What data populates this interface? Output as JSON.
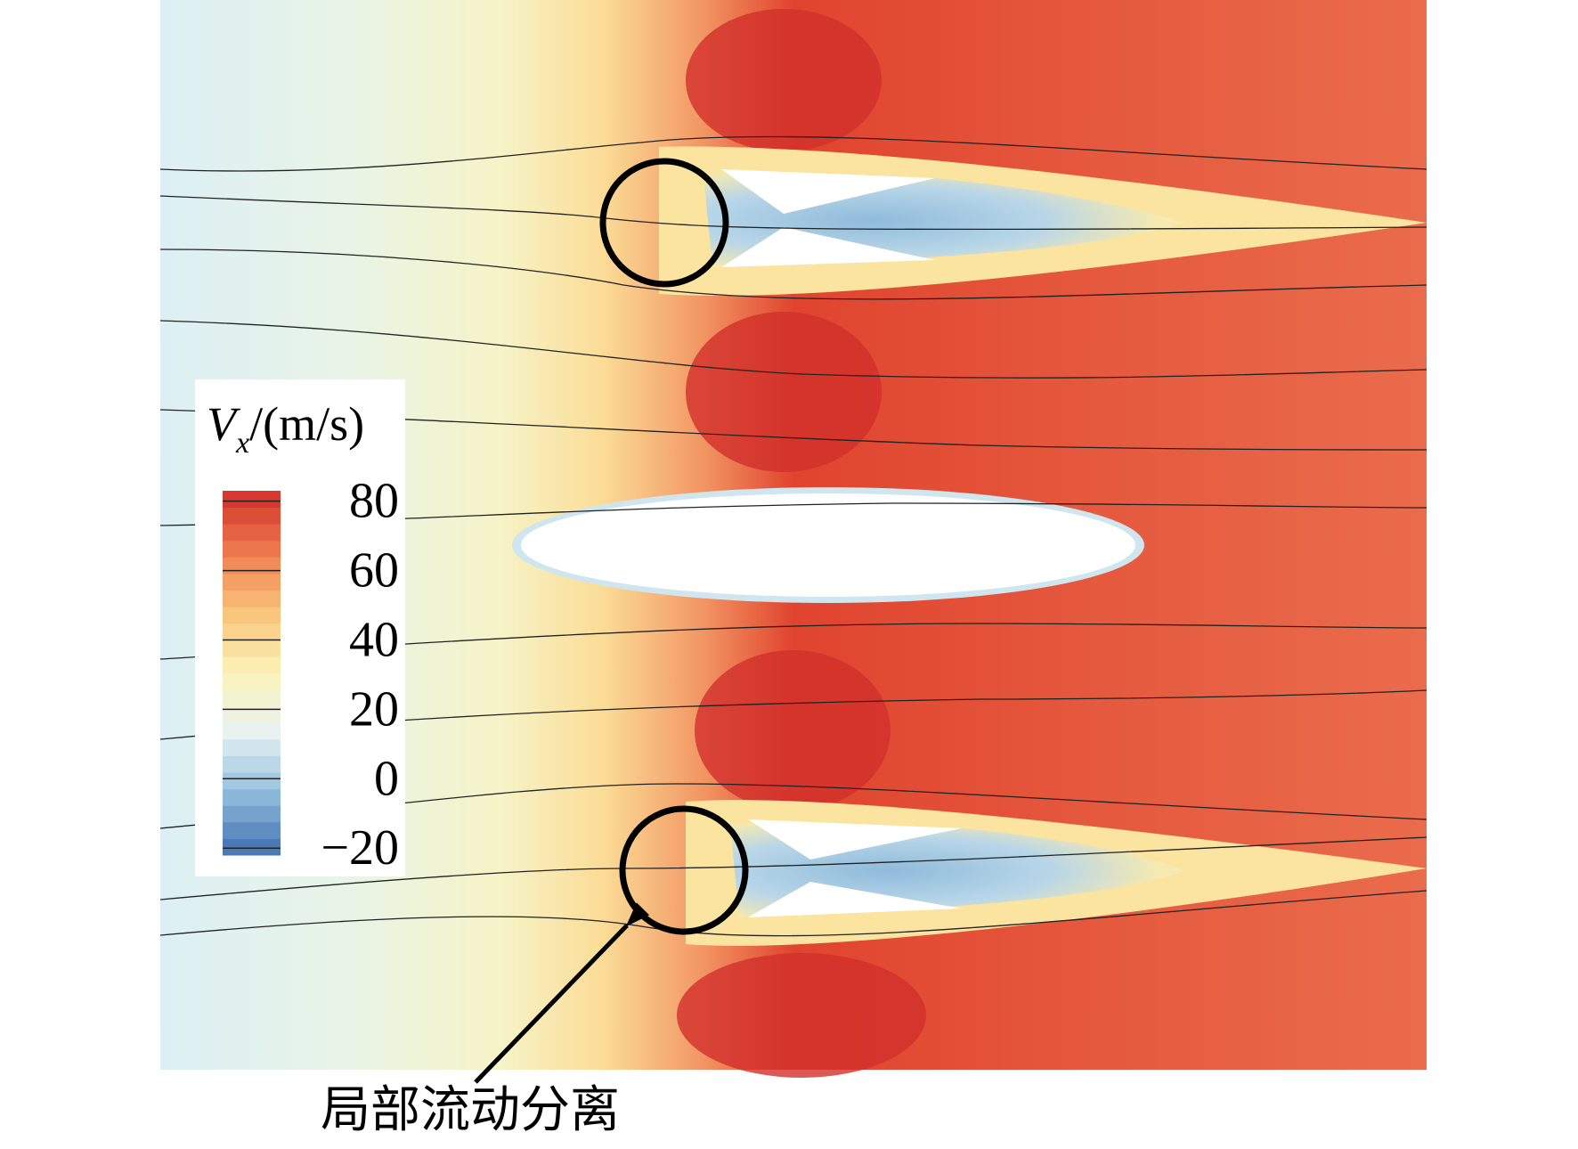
{
  "chart_data": {
    "type": "contour",
    "colorbar": {
      "label_symbol": "V",
      "label_subscript": "x",
      "label_unit": "/(m/s)",
      "clim": [
        -22,
        83
      ],
      "ticks": [
        80,
        60,
        40,
        20,
        0,
        {
          "value": -20,
          "label": "−20"
        }
      ],
      "colors": [
        "#3f6fb0",
        "#8fbbdb",
        "#e6f2f4",
        "#fbf3b8",
        "#f9c47a",
        "#ee7a4e",
        "#d2302a"
      ]
    },
    "annotation": "局部流动分离"
  }
}
